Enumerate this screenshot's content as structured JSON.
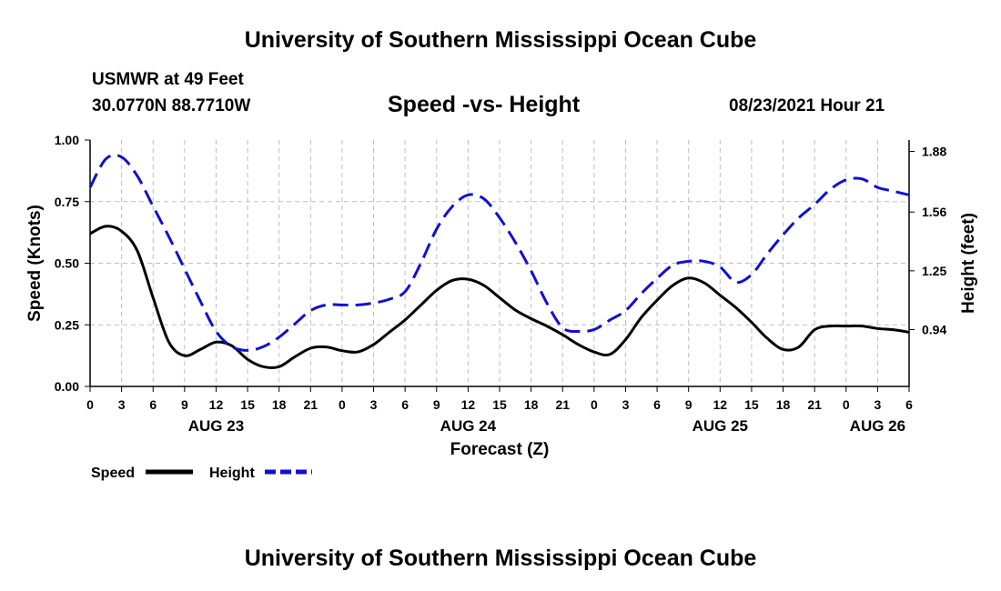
{
  "header": {
    "title": "University of Southern Mississippi Ocean Cube",
    "station": "USMWR at 49 Feet",
    "coordinates": "30.0770N  88.7710W",
    "chart_title": "Speed -vs- Height",
    "datetime": "08/23/2021 Hour 21"
  },
  "footer": {
    "title": "University of Southern Mississippi Ocean Cube"
  },
  "colors": {
    "speed": "#000000",
    "height": "#1010d0",
    "grid": "#bdbdbd"
  },
  "chart_data": {
    "type": "line",
    "title": "Speed -vs- Height",
    "xlabel": "Forecast (Z)",
    "ylabel_left": "Speed (Knots)",
    "ylabel_right": "Height (feet)",
    "x_unit": "hours since 2021-08-23 00Z",
    "xlim": [
      0,
      78
    ],
    "ylim_left": [
      0,
      1.0
    ],
    "ylim_right": [
      0.64,
      1.94
    ],
    "grid": true,
    "x_ticks": [
      0,
      3,
      6,
      9,
      12,
      15,
      18,
      21,
      24,
      27,
      30,
      33,
      36,
      39,
      42,
      45,
      48,
      51,
      54,
      57,
      60,
      63,
      66,
      69,
      72,
      75,
      78
    ],
    "x_tick_labels": [
      "0",
      "3",
      "6",
      "9",
      "12",
      "15",
      "18",
      "21",
      "0",
      "3",
      "6",
      "9",
      "12",
      "15",
      "18",
      "21",
      "0",
      "3",
      "6",
      "9",
      "12",
      "15",
      "18",
      "21",
      "0",
      "3",
      "6"
    ],
    "date_labels": [
      {
        "x": 12,
        "label": "AUG 23"
      },
      {
        "x": 36,
        "label": "AUG 24"
      },
      {
        "x": 60,
        "label": "AUG 25"
      },
      {
        "x": 75,
        "label": "AUG 26"
      }
    ],
    "y_ticks_left": [
      0.0,
      0.25,
      0.5,
      0.75,
      1.0
    ],
    "y_tick_labels_left": [
      "0.00",
      "0.25",
      "0.50",
      "0.75",
      "1.00"
    ],
    "y_ticks_right": [
      0.94,
      1.25,
      1.56,
      1.88
    ],
    "y_tick_labels_right": [
      "0.94",
      "1.25",
      "1.56",
      "1.88"
    ],
    "legend": [
      {
        "name": "Speed",
        "style": "solid"
      },
      {
        "name": "Height",
        "style": "dashed"
      }
    ],
    "legend_position": "bottom-left",
    "series": [
      {
        "name": "Speed",
        "axis": "left",
        "x": [
          0,
          1.5,
          3,
          4.5,
          6,
          7.5,
          9,
          10.5,
          12,
          13.5,
          15,
          16.5,
          18,
          19.5,
          21,
          22.5,
          24,
          25.5,
          27,
          28.5,
          30,
          31.5,
          33,
          34.5,
          36,
          37.5,
          39,
          40.5,
          42,
          43.5,
          45,
          46.5,
          48,
          49.5,
          51,
          52.5,
          54,
          55.5,
          57,
          58.5,
          60,
          61.5,
          63,
          64.5,
          66,
          67.5,
          69,
          70.5,
          72,
          73.5,
          75,
          76.5,
          78
        ],
        "values": [
          0.62,
          0.65,
          0.63,
          0.55,
          0.36,
          0.18,
          0.125,
          0.15,
          0.18,
          0.165,
          0.11,
          0.08,
          0.08,
          0.12,
          0.155,
          0.16,
          0.145,
          0.14,
          0.17,
          0.22,
          0.27,
          0.33,
          0.39,
          0.43,
          0.435,
          0.41,
          0.36,
          0.31,
          0.275,
          0.245,
          0.21,
          0.17,
          0.14,
          0.13,
          0.19,
          0.28,
          0.35,
          0.41,
          0.44,
          0.42,
          0.37,
          0.32,
          0.26,
          0.195,
          0.15,
          0.16,
          0.23,
          0.245,
          0.245,
          0.245,
          0.235,
          0.23,
          0.22
        ]
      },
      {
        "name": "Height",
        "axis": "right",
        "x": [
          0,
          1.5,
          3,
          4.5,
          6,
          7.5,
          9,
          10.5,
          12,
          13.5,
          15,
          16.5,
          18,
          19.5,
          21,
          22.5,
          24,
          25.5,
          27,
          28.5,
          30,
          31.5,
          33,
          34.5,
          36,
          37.5,
          39,
          40.5,
          42,
          43.5,
          45,
          46.5,
          48,
          49.5,
          51,
          52.5,
          54,
          55.5,
          57,
          58.5,
          60,
          61.5,
          63,
          64.5,
          66,
          67.5,
          69,
          70.5,
          72,
          73.5,
          75,
          76.5,
          78
        ],
        "values": [
          1.69,
          1.84,
          1.85,
          1.75,
          1.59,
          1.43,
          1.26,
          1.09,
          0.93,
          0.85,
          0.83,
          0.85,
          0.9,
          0.97,
          1.04,
          1.07,
          1.07,
          1.07,
          1.08,
          1.1,
          1.14,
          1.29,
          1.47,
          1.59,
          1.65,
          1.63,
          1.53,
          1.4,
          1.25,
          1.08,
          0.95,
          0.93,
          0.94,
          0.99,
          1.04,
          1.13,
          1.21,
          1.28,
          1.3,
          1.3,
          1.27,
          1.19,
          1.23,
          1.34,
          1.44,
          1.53,
          1.6,
          1.68,
          1.73,
          1.735,
          1.69,
          1.67,
          1.65
        ]
      }
    ]
  }
}
